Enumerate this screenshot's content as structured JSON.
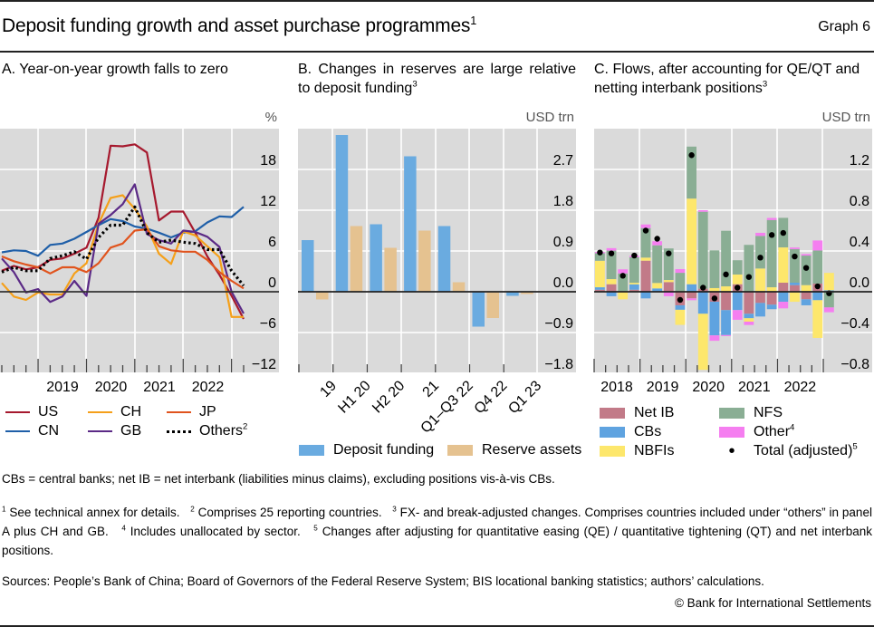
{
  "header": {
    "title": "Deposit funding growth and asset purchase programmes",
    "title_footnote": "1",
    "graph_number": "Graph 6"
  },
  "panels": {
    "a": {
      "title": "A. Year-on-year growth falls to zero",
      "title_footnote": ""
    },
    "b": {
      "title": "B. Changes in reserves are large relative to deposit funding",
      "title_footnote": "3"
    },
    "c": {
      "title": "C. Flows, after accounting for QE/QT and netting interbank positions",
      "title_footnote": "3"
    }
  },
  "chart_data": [
    {
      "id": "panel-a",
      "type": "line",
      "title": "A. Year-on-year growth falls to zero",
      "xlabel": "",
      "ylabel": "%",
      "unit_label": "%",
      "ylim": [
        -12,
        24
      ],
      "yticks": [
        -12,
        -6,
        0,
        6,
        12,
        18
      ],
      "ytick_labels": [
        "−12",
        "−6",
        "0",
        "6",
        "12",
        "18"
      ],
      "x": [
        "2018Q1",
        "2018Q2",
        "2018Q3",
        "2018Q4",
        "2019Q1",
        "2019Q2",
        "2019Q3",
        "2019Q4",
        "2020Q1",
        "2020Q2",
        "2020Q3",
        "2020Q4",
        "2021Q1",
        "2021Q2",
        "2021Q3",
        "2021Q4",
        "2022Q1",
        "2022Q2",
        "2022Q3",
        "2022Q4",
        "2023Q1"
      ],
      "xtick_labels": [
        "2019",
        "2020",
        "2021",
        "2022"
      ],
      "grid": true,
      "legend_position": "bottom",
      "series": [
        {
          "name": "US",
          "color": "#a6192e",
          "style": "solid",
          "values": [
            3.1,
            3.8,
            3.3,
            3.6,
            4.7,
            4.9,
            5.6,
            6.5,
            10.9,
            21.5,
            21.4,
            21.7,
            20.5,
            10.5,
            11.8,
            11.8,
            8.7,
            5.2,
            2.5,
            -0.6,
            -4.0
          ]
        },
        {
          "name": "CN",
          "color": "#1f5fa8",
          "style": "solid",
          "values": [
            5.8,
            6.1,
            6.0,
            5.3,
            6.9,
            7.1,
            7.8,
            8.8,
            9.8,
            10.7,
            10.4,
            9.6,
            9.3,
            8.7,
            8.0,
            8.7,
            8.9,
            10.2,
            11.1,
            11.0,
            12.5
          ]
        },
        {
          "name": "CH",
          "color": "#f5a01a",
          "style": "solid",
          "values": [
            1.3,
            -0.7,
            -1.2,
            -0.1,
            -0.4,
            -0.4,
            2.7,
            4.2,
            10.0,
            13.8,
            14.2,
            12.2,
            9.6,
            5.6,
            4.1,
            8.9,
            8.3,
            6.7,
            5.1,
            -3.7,
            -3.7
          ]
        },
        {
          "name": "GB",
          "color": "#5b2a86",
          "style": "solid",
          "values": [
            4.9,
            2.9,
            -0.1,
            0.4,
            -1.5,
            -0.7,
            1.6,
            -0.6,
            10.0,
            11.3,
            12.9,
            15.8,
            8.5,
            7.6,
            7.1,
            9.0,
            8.8,
            8.1,
            6.6,
            0.0,
            -3.2
          ]
        },
        {
          "name": "JP",
          "color": "#e0541e",
          "style": "solid",
          "values": [
            5.2,
            4.5,
            4.0,
            3.6,
            2.7,
            3.6,
            3.6,
            2.9,
            4.2,
            6.5,
            7.1,
            9.0,
            9.2,
            6.7,
            6.1,
            5.9,
            5.9,
            4.7,
            2.9,
            1.6,
            0.5
          ]
        },
        {
          "name": "Others",
          "name_footnote": "2",
          "color": "#000000",
          "style": "dotted",
          "values": [
            2.9,
            3.6,
            3.1,
            3.1,
            4.9,
            5.3,
            5.9,
            4.8,
            8.0,
            9.8,
            9.8,
            12.5,
            8.7,
            7.3,
            7.6,
            7.3,
            7.1,
            6.2,
            6.2,
            3.1,
            0.9
          ]
        }
      ]
    },
    {
      "id": "panel-b",
      "type": "bar",
      "title": "B. Changes in reserves are large relative to deposit funding",
      "xlabel": "",
      "ylabel": "USD trn",
      "unit_label": "USD trn",
      "ylim": [
        -1.8,
        3.6
      ],
      "yticks": [
        -1.8,
        -0.9,
        0.0,
        0.9,
        1.8,
        2.7
      ],
      "ytick_labels": [
        "−1.8",
        "−0.9",
        "0.0",
        "0.9",
        "1.8",
        "2.7"
      ],
      "categories": [
        "19",
        "H1 20",
        "H2 20",
        "21",
        "Q1–Q3 22",
        "Q4 22",
        "Q1 23"
      ],
      "grid": true,
      "legend_position": "bottom",
      "series": [
        {
          "name": "Deposit funding",
          "color": "#6aabe0",
          "values": [
            1.14,
            3.46,
            1.49,
            2.99,
            1.45,
            -0.77,
            -0.09
          ]
        },
        {
          "name": "Reserve assets",
          "color": "#e5c290",
          "values": [
            -0.17,
            1.45,
            0.97,
            1.35,
            0.21,
            -0.58,
            -0.05
          ]
        }
      ]
    },
    {
      "id": "panel-c",
      "type": "bar",
      "stacked": true,
      "title": "C. Flows, after accounting for QE/QT and netting interbank positions",
      "xlabel": "",
      "ylabel": "USD trn",
      "unit_label": "USD trn",
      "ylim": [
        -0.8,
        1.6
      ],
      "yticks": [
        -0.8,
        -0.4,
        0.0,
        0.4,
        0.8,
        1.2
      ],
      "ytick_labels": [
        "−0.8",
        "−0.4",
        "0.0",
        "0.4",
        "0.8",
        "1.2"
      ],
      "x": [
        "2018Q1",
        "2018Q2",
        "2018Q3",
        "2018Q4",
        "2019Q1",
        "2019Q2",
        "2019Q3",
        "2019Q4",
        "2020Q1",
        "2020Q2",
        "2020Q3",
        "2020Q4",
        "2021Q1",
        "2021Q2",
        "2021Q3",
        "2021Q4",
        "2022Q1",
        "2022Q2",
        "2022Q3",
        "2022Q4",
        "2023Q1"
      ],
      "xtick_labels": [
        "2018",
        "2019",
        "2020",
        "2021",
        "2022"
      ],
      "grid": true,
      "legend_position": "bottom",
      "series": [
        {
          "name": "Net IB",
          "color": "#c27a88",
          "values": [
            0.02,
            0.074,
            0.0,
            0.02,
            0.305,
            0.0,
            0.095,
            -0.133,
            -0.065,
            0.03,
            -0.098,
            -0.18,
            0.074,
            -0.216,
            -0.11,
            -0.127,
            0.089,
            0.065,
            -0.074,
            0.08,
            0.0
          ]
        },
        {
          "name": "CBs",
          "color": "#5fa3e0",
          "values": [
            0.024,
            -0.044,
            0.0,
            0.053,
            -0.065,
            0.033,
            0.0,
            -0.044,
            0.074,
            -0.216,
            -0.33,
            -0.245,
            -0.18,
            -0.044,
            -0.133,
            -0.044,
            -0.098,
            0.024,
            -0.059,
            -0.083,
            0.015
          ]
        },
        {
          "name": "NBFIs",
          "color": "#fde76c",
          "values": [
            0.26,
            0.05,
            -0.074,
            0.015,
            0.03,
            0.053,
            0.02,
            -0.148,
            0.84,
            -0.55,
            0.036,
            0.053,
            0.095,
            -0.033,
            0.228,
            0.044,
            0.346,
            -0.098,
            0.065,
            -0.37,
            0.17
          ]
        },
        {
          "name": "NFS",
          "color": "#8aae94",
          "values": [
            0.074,
            0.28,
            0.18,
            0.25,
            0.29,
            0.37,
            0.31,
            0.186,
            0.51,
            0.755,
            0.37,
            0.545,
            0.14,
            0.46,
            0.32,
            0.66,
            0.29,
            0.33,
            0.29,
            0.325,
            -0.154
          ]
        },
        {
          "name": "Other",
          "name_footnote": "4",
          "color": "#f57ef0",
          "values": [
            0.012,
            0.024,
            0.04,
            0.015,
            0.035,
            0.04,
            -0.044,
            0.036,
            -0.018,
            0.015,
            -0.053,
            -0.01,
            -0.095,
            -0.033,
            0.03,
            0.02,
            -0.065,
            0.015,
            0.015,
            0.098,
            -0.047
          ]
        }
      ],
      "markers": {
        "name": "Total (adjusted)",
        "name_footnote": "5",
        "color": "#000000",
        "values": [
          0.385,
          0.376,
          0.157,
          0.355,
          0.6,
          0.52,
          0.376,
          -0.08,
          1.34,
          0.04,
          -0.065,
          0.17,
          0.04,
          0.145,
          0.335,
          0.557,
          0.577,
          0.346,
          0.234,
          0.053,
          -0.015
        ]
      }
    }
  ],
  "notes": {
    "abbreviations": "CBs = central banks; net IB = net interbank (liabilities minus claims), excluding positions vis-à-vis CBs.",
    "footnotes": [
      {
        "num": "1",
        "text": "See technical annex for details."
      },
      {
        "num": "2",
        "text": "Comprises 25 reporting countries."
      },
      {
        "num": "3",
        "text": "FX- and break-adjusted changes. Comprises countries included under “others” in panel A plus CH and GB."
      },
      {
        "num": "4",
        "text": "Includes unallocated by sector."
      },
      {
        "num": "5",
        "text": "Changes after adjusting for quantitative easing (QE) / quantitative tightening (QT) and net interbank positions."
      }
    ],
    "sources": "Sources: People’s Bank of China; Board of Governors of the Federal Reserve System; BIS locational banking statistics; authors’ calculations.",
    "copyright": "© Bank for International Settlements"
  }
}
